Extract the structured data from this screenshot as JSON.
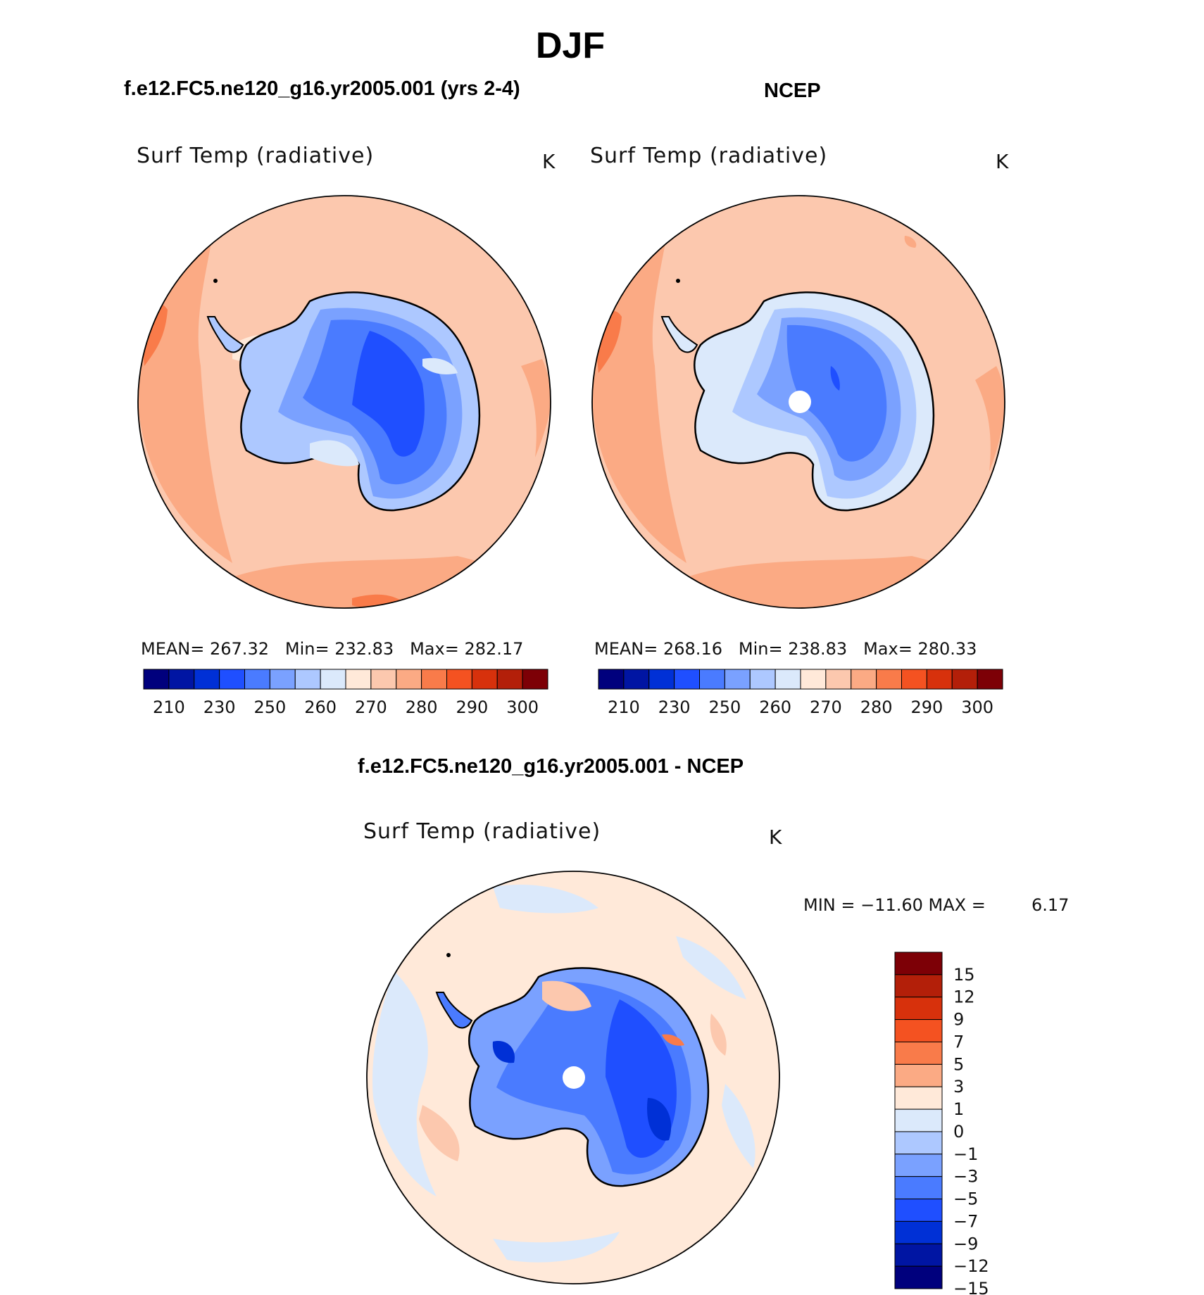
{
  "page": {
    "title": "DJF"
  },
  "panels": [
    {
      "heading": "f.e12.FC5.ne120_g16.yr2005.001 (yrs 2-4)",
      "variable": "Surf Temp (radiative)",
      "units": "K",
      "stats": {
        "mean_label": "MEAN=",
        "mean": "267.32",
        "min_label": "Min=",
        "min": "232.83",
        "max_label": "Max=",
        "max": "282.17"
      }
    },
    {
      "heading": "NCEP",
      "variable": "Surf Temp (radiative)",
      "units": "K",
      "stats": {
        "mean_label": "MEAN=",
        "mean": "268.16",
        "min_label": "Min=",
        "min": "238.83",
        "max_label": "Max=",
        "max": "280.33"
      }
    },
    {
      "heading": "f.e12.FC5.ne120_g16.yr2005.001 - NCEP",
      "variable": "Surf Temp (radiative)",
      "units": "K",
      "minmax_text": "MIN = −11.60 MAX =",
      "max_value": "6.17"
    }
  ],
  "colorbar_abs": {
    "colors": [
      "#00007d",
      "#0015a3",
      "#0030d6",
      "#1f4fff",
      "#4a7bff",
      "#7aa1ff",
      "#adc8ff",
      "#dbe9fb",
      "#ffe9d9",
      "#fcc8ae",
      "#fbaa84",
      "#f97b4a",
      "#f45221",
      "#d7310c",
      "#b31f09",
      "#7d0006"
    ],
    "tick_labels": [
      "210",
      "230",
      "250",
      "260",
      "270",
      "280",
      "290",
      "300"
    ]
  },
  "colorbar_diff": {
    "colors": [
      "#7d0006",
      "#b31f09",
      "#d7310c",
      "#f45221",
      "#f97b4a",
      "#fbaa84",
      "#ffe9d9",
      "#dbe9fb",
      "#adc8ff",
      "#7aa1ff",
      "#4a7bff",
      "#1f4fff",
      "#0030d6",
      "#0015a3",
      "#00007d"
    ],
    "tick_labels": [
      "15",
      "12",
      "9",
      "7",
      "5",
      "3",
      "1",
      "0",
      "−1",
      "−3",
      "−5",
      "−7",
      "−9",
      "−12",
      "−15"
    ]
  }
}
